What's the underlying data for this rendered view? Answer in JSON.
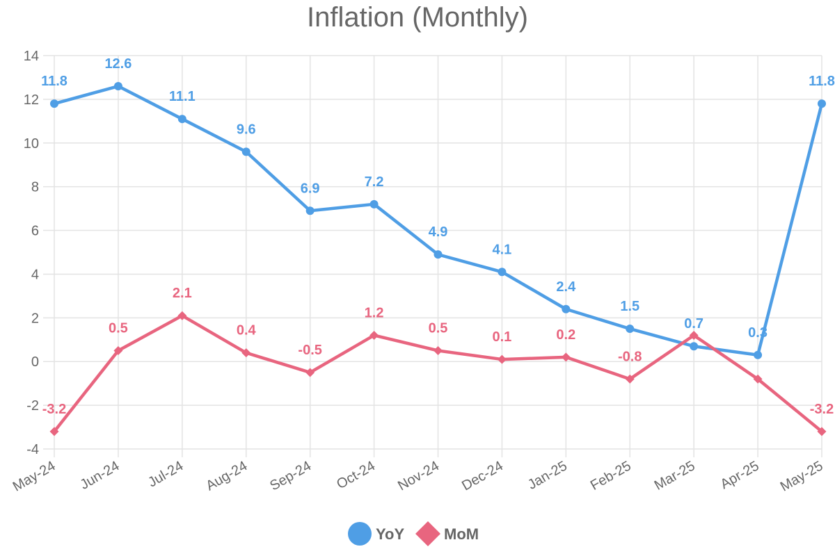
{
  "chart_data": {
    "type": "line",
    "title": "Inflation (Monthly)",
    "categories": [
      "May-24",
      "Jun-24",
      "Jul-24",
      "Aug-24",
      "Sep-24",
      "Oct-24",
      "Nov-24",
      "Dec-24",
      "Jan-25",
      "Feb-25",
      "Mar-25",
      "Apr-25",
      "May-25"
    ],
    "ylim": [
      -4,
      14
    ],
    "yticks": [
      -4,
      -2,
      0,
      2,
      4,
      6,
      8,
      10,
      12,
      14
    ],
    "grid": true,
    "legend_position": "bottom",
    "series": [
      {
        "name": "YoY",
        "color": "#4f9ee5",
        "marker": "circle",
        "values": [
          11.8,
          12.6,
          11.1,
          9.6,
          6.9,
          7.2,
          4.9,
          4.1,
          2.4,
          1.5,
          0.7,
          0.3,
          11.8
        ]
      },
      {
        "name": "MoM",
        "color": "#e8657f",
        "marker": "diamond",
        "values": [
          -3.2,
          0.5,
          2.1,
          0.4,
          -0.5,
          1.2,
          0.5,
          0.1,
          0.2,
          -0.8,
          1.2,
          -0.8,
          -3.2
        ]
      }
    ],
    "data_labels": {
      "YoY": [
        "11.8",
        "12.6",
        "11.1",
        "9.6",
        "6.9",
        "7.2",
        "4.9",
        "4.1",
        "2.4",
        "1.5",
        "0.7",
        "0.3",
        "11.8"
      ],
      "MoM": [
        "-3.2",
        "0.5",
        "2.1",
        "0.4",
        "-0.5",
        "1.2",
        "0.5",
        "0.1",
        "0.2",
        "-0.8",
        "",
        "",
        "-3.2"
      ]
    }
  }
}
